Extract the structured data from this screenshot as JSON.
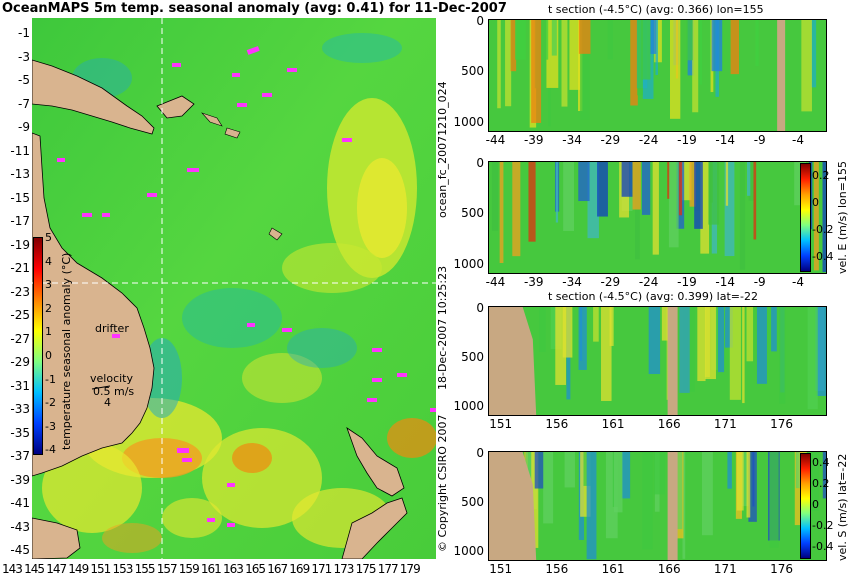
{
  "main_title": "OceanMAPS 5m temp. seasonal anomaly (avg: 0.41) for 11-Dec-2007",
  "colors": {
    "land": "#d9b48f",
    "water_base": "#4cd13a",
    "warm": "#e8e830",
    "hot": "#f08a10",
    "cool": "#20a8c8",
    "drifter": "#ff33ff",
    "crosshair": "#ffffff"
  },
  "map": {
    "lat_ticks": [
      "-1",
      "-3",
      "-5",
      "-7",
      "-9",
      "-11",
      "-13",
      "-15",
      "-17",
      "-19",
      "-21",
      "-23",
      "-25",
      "-27",
      "-29",
      "-31",
      "-33",
      "-35",
      "-37",
      "-39",
      "-41",
      "-43",
      "-45"
    ],
    "lon_ticks": [
      "143",
      "145",
      "147",
      "149",
      "151",
      "153",
      "155",
      "157",
      "159",
      "161",
      "163",
      "165",
      "167",
      "169",
      "171",
      "173",
      "175",
      "177",
      "179"
    ],
    "drifter_label": "drifter",
    "velocity_label": "velocity",
    "velocity_scale_1": "0.5 m/s",
    "velocity_scale_2": "4",
    "crosshair_lon": 155,
    "crosshair_lat": -22
  },
  "colorbar_main": {
    "label": "temperature seasonal anomaly (°C)",
    "ticks": [
      "5",
      "4",
      "3",
      "2",
      "1",
      "0",
      "-1",
      "-2",
      "-3",
      "-4"
    ]
  },
  "side_labels": {
    "file_id": "ocean_fc_20071210_024",
    "timestamp": "18-Dec-2007 10:25:23",
    "copyright": "© Copyright CSIRO 2007"
  },
  "chart_data": [
    {
      "type": "heatmap",
      "title": "t section (-4.5°C) (avg: 0.366) lon=155",
      "x_ticks": [
        "-44",
        "-39",
        "-34",
        "-29",
        "-24",
        "-19",
        "-14",
        "-9",
        "-4"
      ],
      "y_ticks": [
        "0",
        "500",
        "1000"
      ],
      "xlim": [
        -45,
        -1
      ],
      "ylim": [
        1050,
        0
      ]
    },
    {
      "type": "heatmap",
      "title": "",
      "x_ticks": [
        "-44",
        "-39",
        "-34",
        "-29",
        "-24",
        "-19",
        "-14",
        "-9",
        "-4"
      ],
      "y_ticks": [
        "0",
        "500",
        "1000"
      ],
      "colorbar_label": "vel. E (m/s) lon=155",
      "colorbar_ticks": [
        "0.2",
        "0",
        "-0.2",
        "-0.4"
      ],
      "xlim": [
        -45,
        -1
      ],
      "ylim": [
        1050,
        0
      ]
    },
    {
      "type": "heatmap",
      "title": "t section (-4.5°C) (avg: 0.399) lat=-22",
      "x_ticks": [
        "151",
        "156",
        "161",
        "166",
        "171",
        "176"
      ],
      "y_ticks": [
        "0",
        "500",
        "1000"
      ],
      "xlim": [
        150,
        180
      ],
      "ylim": [
        1050,
        0
      ]
    },
    {
      "type": "heatmap",
      "title": "",
      "x_ticks": [
        "151",
        "156",
        "161",
        "166",
        "171",
        "176"
      ],
      "y_ticks": [
        "0",
        "500",
        "1000"
      ],
      "colorbar_label": "vel. S (m/s) lat=-22",
      "colorbar_ticks": [
        "0.4",
        "0.2",
        "0",
        "-0.2",
        "-0.4"
      ],
      "xlim": [
        150,
        180
      ],
      "ylim": [
        1050,
        0
      ]
    }
  ]
}
